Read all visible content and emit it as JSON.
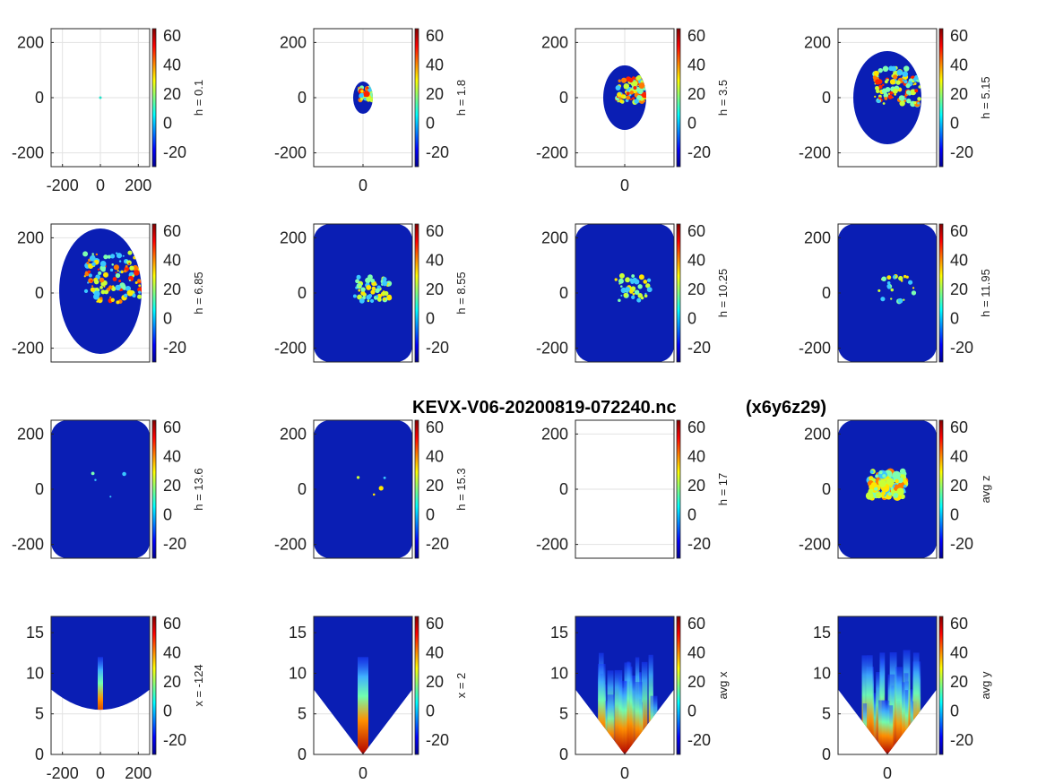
{
  "figure": {
    "title_file": "KEVX-V06-20200819-072240.nc",
    "title_grid": "(x6y6z29)"
  },
  "colormap": "jet",
  "chart_data": [
    {
      "type": "heatmap",
      "panel": 1,
      "cbar_label": "h = 0.1",
      "xticks": [
        "-200",
        "0",
        "200"
      ],
      "yticks": [
        "200",
        "0",
        "-200"
      ],
      "xlim": [
        -260,
        260
      ],
      "ylim": [
        -250,
        250
      ],
      "cbar_ticks": [
        "60",
        "40",
        "20",
        "0",
        "-20"
      ],
      "clim": [
        -30,
        65
      ],
      "echo": "point"
    },
    {
      "type": "heatmap",
      "panel": 2,
      "cbar_label": "h = 1.8",
      "xticks": [
        "0"
      ],
      "yticks": [
        "200",
        "0",
        "-200"
      ],
      "xlim": [
        -170,
        170
      ],
      "ylim": [
        -250,
        250
      ],
      "cbar_ticks": [
        "60",
        "40",
        "20",
        "0",
        "-20"
      ],
      "clim": [
        -30,
        65
      ],
      "echo": "disc"
    },
    {
      "type": "heatmap",
      "panel": 3,
      "cbar_label": "h = 3.5",
      "xticks": [
        "0"
      ],
      "yticks": [
        "200",
        "0",
        "-200"
      ],
      "xlim": [
        -170,
        170
      ],
      "ylim": [
        -250,
        250
      ],
      "cbar_ticks": [
        "60",
        "40",
        "20",
        "0",
        "-20"
      ],
      "clim": [
        -30,
        65
      ],
      "echo": "disc"
    },
    {
      "type": "heatmap",
      "panel": 4,
      "cbar_label": "h = 5.15",
      "xticks": [],
      "yticks": [
        "200",
        "0",
        "-200"
      ],
      "xlim": [
        -170,
        170
      ],
      "ylim": [
        -250,
        250
      ],
      "cbar_ticks": [
        "60",
        "40",
        "20",
        "0",
        "-20"
      ],
      "clim": [
        -30,
        65
      ],
      "echo": "disc"
    },
    {
      "type": "heatmap",
      "panel": 5,
      "cbar_label": "h = 6.85",
      "xticks": [],
      "yticks": [
        "200",
        "0",
        "-200"
      ],
      "xlim": [
        -170,
        170
      ],
      "ylim": [
        -250,
        250
      ],
      "cbar_ticks": [
        "60",
        "40",
        "20",
        "0",
        "-20"
      ],
      "clim": [
        -30,
        65
      ],
      "echo": "disc"
    },
    {
      "type": "heatmap",
      "panel": 6,
      "cbar_label": "h = 8.55",
      "xticks": [],
      "yticks": [
        "200",
        "0",
        "-200"
      ],
      "xlim": [
        -170,
        170
      ],
      "ylim": [
        -250,
        250
      ],
      "cbar_ticks": [
        "60",
        "40",
        "20",
        "0",
        "-20"
      ],
      "clim": [
        -30,
        65
      ],
      "echo": "full"
    },
    {
      "type": "heatmap",
      "panel": 7,
      "cbar_label": "h = 10.25",
      "xticks": [],
      "yticks": [
        "200",
        "0",
        "-200"
      ],
      "xlim": [
        -170,
        170
      ],
      "ylim": [
        -250,
        250
      ],
      "cbar_ticks": [
        "60",
        "40",
        "20",
        "0",
        "-20"
      ],
      "clim": [
        -30,
        65
      ],
      "echo": "full"
    },
    {
      "type": "heatmap",
      "panel": 8,
      "cbar_label": "h = 11.95",
      "xticks": [],
      "yticks": [
        "200",
        "0",
        "-200"
      ],
      "xlim": [
        -170,
        170
      ],
      "ylim": [
        -250,
        250
      ],
      "cbar_ticks": [
        "60",
        "40",
        "20",
        "0",
        "-20"
      ],
      "clim": [
        -30,
        65
      ],
      "echo": "full"
    },
    {
      "type": "heatmap",
      "panel": 9,
      "cbar_label": "h = 13.6",
      "xticks": [],
      "yticks": [
        "200",
        "0",
        "-200"
      ],
      "xlim": [
        -170,
        170
      ],
      "ylim": [
        -250,
        250
      ],
      "cbar_ticks": [
        "60",
        "40",
        "20",
        "0",
        "-20"
      ],
      "clim": [
        -30,
        65
      ],
      "echo": "full"
    },
    {
      "type": "heatmap",
      "panel": 10,
      "cbar_label": "h = 15.3",
      "xticks": [],
      "yticks": [
        "200",
        "0",
        "-200"
      ],
      "xlim": [
        -170,
        170
      ],
      "ylim": [
        -250,
        250
      ],
      "cbar_ticks": [
        "60",
        "40",
        "20",
        "0",
        "-20"
      ],
      "clim": [
        -30,
        65
      ],
      "echo": "full"
    },
    {
      "type": "heatmap",
      "panel": 11,
      "cbar_label": "h = 17",
      "xticks": [],
      "yticks": [
        "200",
        "0",
        "-200"
      ],
      "xlim": [
        -170,
        170
      ],
      "ylim": [
        -250,
        250
      ],
      "cbar_ticks": [
        "60",
        "40",
        "20",
        "0",
        "-20"
      ],
      "clim": [
        -30,
        65
      ],
      "echo": "none"
    },
    {
      "type": "heatmap",
      "panel": 12,
      "cbar_label": "avg z",
      "xticks": [],
      "yticks": [
        "200",
        "0",
        "-200"
      ],
      "xlim": [
        -170,
        170
      ],
      "ylim": [
        -250,
        250
      ],
      "cbar_ticks": [
        "60",
        "40",
        "20",
        "0",
        "-20"
      ],
      "clim": [
        -30,
        65
      ],
      "echo": "full"
    },
    {
      "type": "heatmap",
      "panel": 13,
      "cbar_label": "x = -124",
      "xticks": [
        "-200",
        "0",
        "200"
      ],
      "yticks": [
        "15",
        "10",
        "5",
        "0"
      ],
      "xlim": [
        -260,
        260
      ],
      "ylim": [
        0,
        17
      ],
      "cbar_ticks": [
        "60",
        "40",
        "20",
        "0",
        "-20"
      ],
      "clim": [
        -30,
        65
      ],
      "echo": "vertical"
    },
    {
      "type": "heatmap",
      "panel": 14,
      "cbar_label": "x = 2",
      "xticks": [
        "0"
      ],
      "yticks": [
        "15",
        "10",
        "5",
        "0"
      ],
      "xlim": [
        -170,
        170
      ],
      "ylim": [
        0,
        17
      ],
      "cbar_ticks": [
        "60",
        "40",
        "20",
        "0",
        "-20"
      ],
      "clim": [
        -30,
        65
      ],
      "echo": "vertical"
    },
    {
      "type": "heatmap",
      "panel": 15,
      "cbar_label": "avg x",
      "xticks": [
        "0"
      ],
      "yticks": [
        "15",
        "10",
        "5",
        "0"
      ],
      "xlim": [
        -170,
        170
      ],
      "ylim": [
        0,
        17
      ],
      "cbar_ticks": [
        "60",
        "40",
        "20",
        "0",
        "-20"
      ],
      "clim": [
        -30,
        65
      ],
      "echo": "vertical"
    },
    {
      "type": "heatmap",
      "panel": 16,
      "cbar_label": "avg y",
      "xticks": [
        "0"
      ],
      "yticks": [
        "15",
        "10",
        "5",
        "0"
      ],
      "xlim": [
        -170,
        170
      ],
      "ylim": [
        0,
        17
      ],
      "cbar_ticks": [
        "60",
        "40",
        "20",
        "0",
        "-20"
      ],
      "clim": [
        -30,
        65
      ],
      "echo": "vertical"
    }
  ]
}
